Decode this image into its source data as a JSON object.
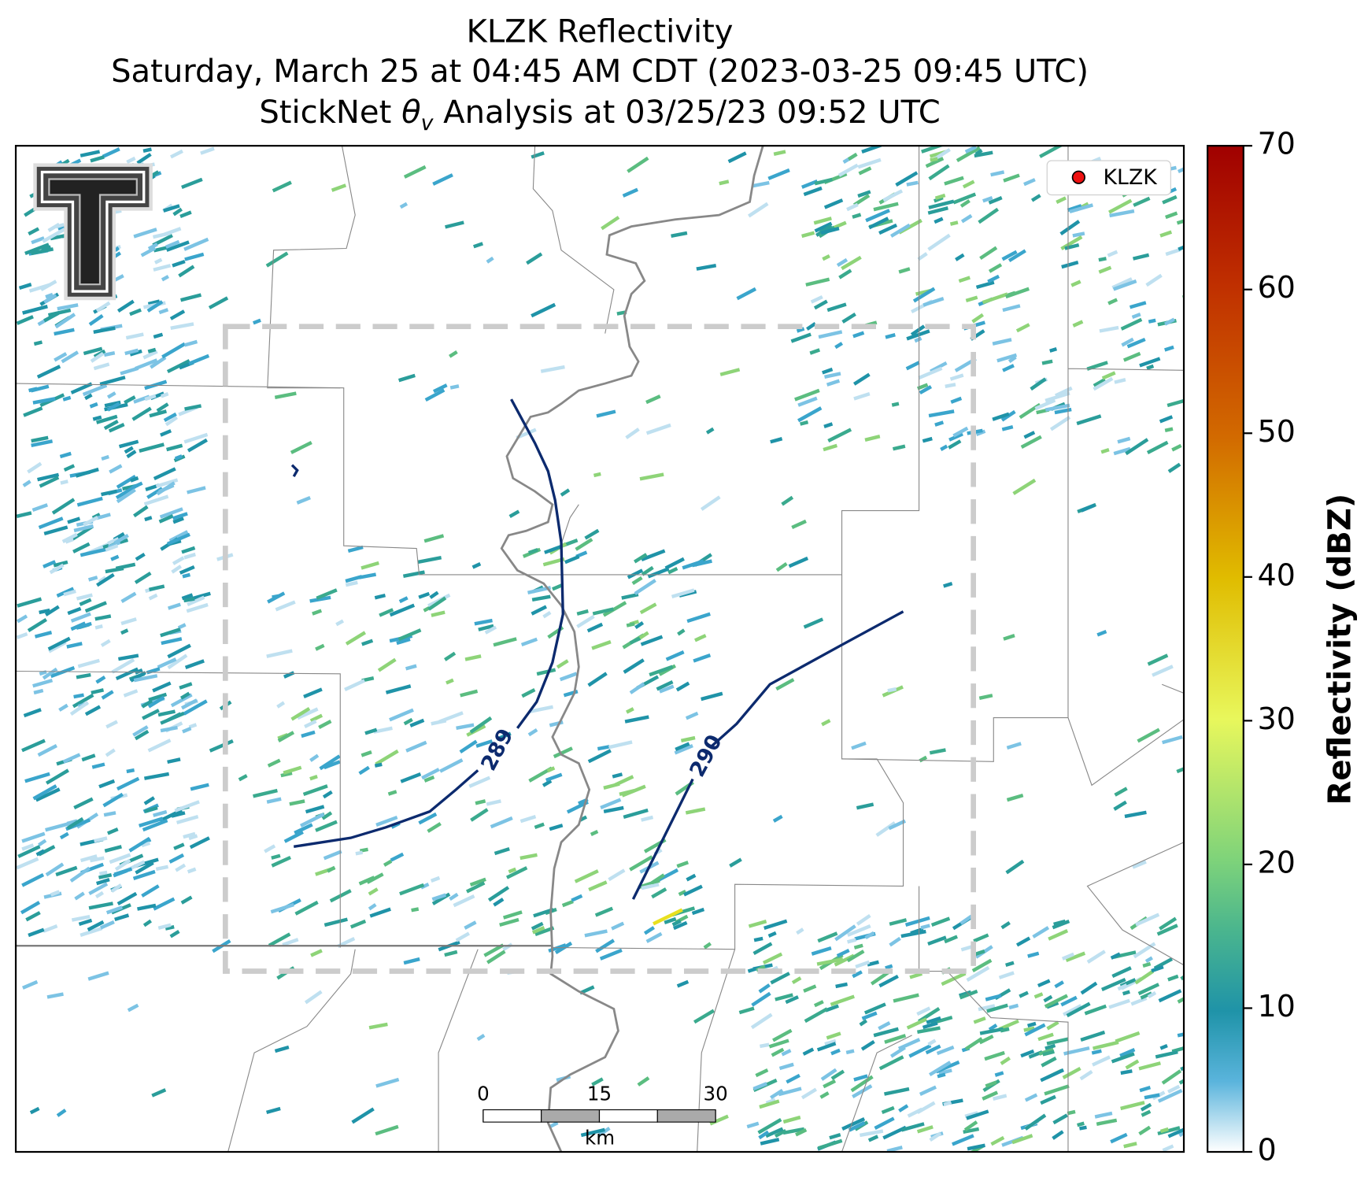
{
  "title": {
    "line1": "KLZK Reflectivity",
    "line2": "Saturday, March 25 at 04:45 AM CDT (2023-03-25 09:45 UTC)",
    "line3_prefix": "StickNet ",
    "line3_symbol": "θ",
    "line3_subscript": "v",
    "line3_suffix": " Analysis at 03/25/23 09:52 UTC"
  },
  "legend": {
    "label": "KLZK",
    "color": "#ee1111"
  },
  "colorbar": {
    "label": "Reflectivity (dBZ)",
    "lim": [
      0,
      70
    ],
    "ticks": [
      0,
      10,
      20,
      30,
      40,
      50,
      60,
      70
    ]
  },
  "contours": [
    {
      "label": 289,
      "color": "#0c2a6e"
    },
    {
      "label": 290,
      "color": "#0c2a6e"
    }
  ],
  "scale_bar": {
    "ticks": [
      0,
      15,
      30
    ],
    "unit": "km"
  }
}
